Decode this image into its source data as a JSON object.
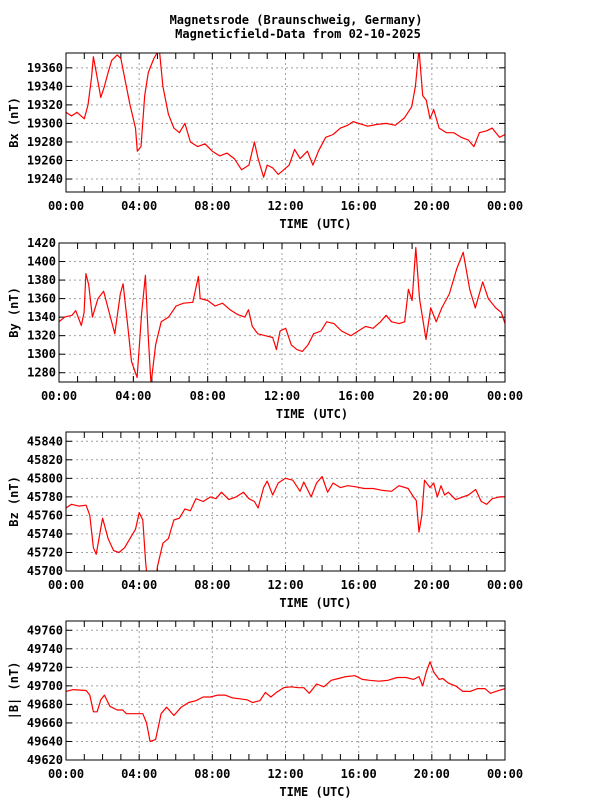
{
  "title_line1": "Magnetsrode (Braunschweig, Germany)",
  "title_line2": "Magneticfield-Data from 02-10-2025",
  "line_color": "#ff0000",
  "chart_data": [
    {
      "type": "line",
      "ylabel": "Bx (nT)",
      "xlabel": "TIME (UTC)",
      "xlim": [
        0,
        24
      ],
      "xticks": [
        "00:00",
        "04:00",
        "08:00",
        "12:00",
        "16:00",
        "20:00",
        "00:00"
      ],
      "ylim": [
        19226,
        19376
      ],
      "yticks": [
        19240,
        19260,
        19280,
        19300,
        19320,
        19340,
        19360
      ],
      "grid": true,
      "x": [
        0,
        0.3,
        0.6,
        1,
        1.2,
        1.4,
        1.5,
        1.7,
        1.9,
        2.1,
        2.3,
        2.5,
        2.8,
        3.0,
        3.2,
        3.5,
        3.8,
        3.9,
        4.1,
        4.3,
        4.5,
        4.8,
        5.1,
        5.3,
        5.6,
        5.9,
        6.2,
        6.5,
        6.8,
        7.2,
        7.6,
        8.0,
        8.4,
        8.8,
        9.2,
        9.6,
        10.0,
        10.3,
        10.5,
        10.8,
        11.0,
        11.3,
        11.6,
        11.9,
        12.2,
        12.5,
        12.8,
        13.2,
        13.5,
        13.8,
        14.2,
        14.6,
        15.0,
        15.4,
        15.7,
        16.0,
        16.5,
        17.0,
        17.5,
        18.0,
        18.5,
        18.9,
        19.1,
        19.3,
        19.5,
        19.7,
        19.9,
        20.1,
        20.4,
        20.8,
        21.2,
        21.6,
        22.0,
        22.3,
        22.6,
        23.0,
        23.3,
        23.7,
        24
      ],
      "y": [
        19312,
        19308,
        19312,
        19305,
        19320,
        19350,
        19372,
        19350,
        19328,
        19340,
        19355,
        19368,
        19374,
        19370,
        19350,
        19320,
        19295,
        19270,
        19275,
        19330,
        19355,
        19370,
        19380,
        19340,
        19310,
        19295,
        19290,
        19300,
        19280,
        19275,
        19278,
        19270,
        19265,
        19268,
        19262,
        19250,
        19255,
        19280,
        19262,
        19242,
        19255,
        19252,
        19245,
        19250,
        19255,
        19272,
        19262,
        19270,
        19255,
        19270,
        19285,
        19288,
        19295,
        19298,
        19302,
        19300,
        19297,
        19299,
        19300,
        19298,
        19306,
        19318,
        19340,
        19380,
        19330,
        19325,
        19305,
        19315,
        19295,
        19290,
        19290,
        19285,
        19282,
        19275,
        19290,
        19292,
        19295,
        19285,
        19288
      ]
    },
    {
      "type": "line",
      "ylabel": "By (nT)",
      "xlabel": "TIME (UTC)",
      "xlim": [
        0,
        24
      ],
      "xticks": [
        "00:00",
        "04:00",
        "08:00",
        "12:00",
        "16:00",
        "20:00",
        "00:00"
      ],
      "ylim": [
        1270,
        1420
      ],
      "yticks": [
        1280,
        1300,
        1320,
        1340,
        1360,
        1380,
        1400,
        1420
      ],
      "grid": true,
      "x": [
        0,
        0.3,
        0.7,
        0.9,
        1.2,
        1.35,
        1.45,
        1.6,
        1.8,
        2.1,
        2.4,
        2.7,
        3.0,
        3.3,
        3.45,
        3.7,
        3.9,
        4.2,
        4.45,
        4.65,
        4.8,
        4.95,
        5.2,
        5.5,
        5.9,
        6.3,
        6.7,
        7.2,
        7.5,
        7.6,
        8.0,
        8.4,
        8.8,
        9.2,
        9.6,
        10.0,
        10.2,
        10.4,
        10.7,
        11.1,
        11.5,
        11.7,
        11.9,
        12.2,
        12.5,
        12.8,
        13.1,
        13.4,
        13.7,
        14.1,
        14.4,
        14.8,
        15.2,
        15.7,
        16.1,
        16.5,
        16.9,
        17.3,
        17.6,
        17.9,
        18.3,
        18.6,
        18.8,
        19.0,
        19.2,
        19.4,
        19.75,
        20.0,
        20.3,
        20.6,
        21.0,
        21.4,
        21.75,
        22.1,
        22.4,
        22.8,
        23.1,
        23.5,
        23.8,
        24
      ],
      "y": [
        1335,
        1340,
        1342,
        1347,
        1331,
        1345,
        1387,
        1375,
        1340,
        1360,
        1368,
        1345,
        1322,
        1365,
        1376,
        1330,
        1292,
        1275,
        1345,
        1385,
        1320,
        1268,
        1310,
        1335,
        1340,
        1352,
        1355,
        1356,
        1384,
        1360,
        1358,
        1352,
        1355,
        1348,
        1343,
        1340,
        1348,
        1330,
        1322,
        1320,
        1318,
        1305,
        1325,
        1328,
        1310,
        1305,
        1303,
        1310,
        1322,
        1325,
        1335,
        1333,
        1325,
        1320,
        1325,
        1330,
        1328,
        1335,
        1342,
        1335,
        1333,
        1335,
        1370,
        1358,
        1415,
        1360,
        1316,
        1350,
        1335,
        1350,
        1365,
        1392,
        1410,
        1370,
        1350,
        1378,
        1360,
        1350,
        1345,
        1333
      ]
    },
    {
      "type": "line",
      "ylabel": "Bz (nT)",
      "xlabel": "TIME (UTC)",
      "xlim": [
        0,
        24
      ],
      "xticks": [
        "00:00",
        "04:00",
        "08:00",
        "12:00",
        "16:00",
        "20:00",
        "00:00"
      ],
      "ylim": [
        45700,
        45850
      ],
      "yticks": [
        45700,
        45720,
        45740,
        45760,
        45780,
        45800,
        45820,
        45840
      ],
      "grid": true,
      "x": [
        0,
        0.3,
        0.7,
        1.1,
        1.3,
        1.5,
        1.65,
        1.85,
        2.0,
        2.3,
        2.6,
        2.9,
        3.2,
        3.5,
        3.8,
        4.0,
        4.2,
        4.35,
        4.45,
        4.9,
        5.0,
        5.3,
        5.6,
        5.9,
        6.2,
        6.5,
        6.8,
        7.1,
        7.5,
        7.9,
        8.2,
        8.5,
        8.9,
        9.3,
        9.7,
        10.0,
        10.3,
        10.5,
        10.8,
        11.0,
        11.3,
        11.6,
        12.0,
        12.4,
        12.8,
        13.0,
        13.4,
        13.7,
        14.0,
        14.3,
        14.6,
        15.0,
        15.4,
        15.8,
        16.3,
        16.8,
        17.3,
        17.8,
        18.2,
        18.7,
        19.0,
        19.15,
        19.3,
        19.45,
        19.6,
        19.9,
        20.1,
        20.3,
        20.5,
        20.7,
        20.9,
        21.3,
        21.7,
        22.0,
        22.4,
        22.7,
        23.0,
        23.3,
        23.7,
        24
      ],
      "y": [
        45768,
        45772,
        45770,
        45771,
        45760,
        45725,
        45718,
        45740,
        45757,
        45735,
        45722,
        45720,
        45725,
        45735,
        45745,
        45763,
        45755,
        45710,
        45690,
        45690,
        45705,
        45730,
        45735,
        45755,
        45757,
        45767,
        45765,
        45778,
        45775,
        45780,
        45778,
        45785,
        45777,
        45780,
        45785,
        45778,
        45775,
        45768,
        45790,
        45797,
        45782,
        45795,
        45800,
        45798,
        45786,
        45796,
        45780,
        45795,
        45802,
        45785,
        45795,
        45790,
        45792,
        45791,
        45789,
        45789,
        45787,
        45786,
        45792,
        45789,
        45780,
        45776,
        45742,
        45760,
        45798,
        45790,
        45795,
        45780,
        45792,
        45782,
        45785,
        45777,
        45780,
        45782,
        45788,
        45775,
        45772,
        45778,
        45780,
        45780
      ]
    },
    {
      "type": "line",
      "ylabel": "|B| (nT)",
      "xlabel": "TIME (UTC)",
      "xlim": [
        0,
        24
      ],
      "xticks": [
        "00:00",
        "04:00",
        "08:00",
        "12:00",
        "16:00",
        "20:00",
        "00:00"
      ],
      "ylim": [
        49620,
        49770
      ],
      "yticks": [
        49620,
        49640,
        49660,
        49680,
        49700,
        49720,
        49740,
        49760
      ],
      "grid": true,
      "x": [
        0,
        0.4,
        1.1,
        1.3,
        1.5,
        1.7,
        1.9,
        2.1,
        2.4,
        2.8,
        3.1,
        3.3,
        3.8,
        4.2,
        4.4,
        4.6,
        4.9,
        5.2,
        5.5,
        5.9,
        6.3,
        6.7,
        7.1,
        7.5,
        7.9,
        8.3,
        8.7,
        9.1,
        9.5,
        9.9,
        10.2,
        10.6,
        10.9,
        11.2,
        11.5,
        11.9,
        12.3,
        12.7,
        13.0,
        13.3,
        13.7,
        14.1,
        14.5,
        14.9,
        15.3,
        15.8,
        16.2,
        16.6,
        17.1,
        17.6,
        18.1,
        18.6,
        19.0,
        19.3,
        19.5,
        19.7,
        19.9,
        20.1,
        20.4,
        20.6,
        20.9,
        21.3,
        21.7,
        22.1,
        22.5,
        22.9,
        23.2,
        23.5,
        24
      ],
      "y": [
        49694,
        49696,
        49695,
        49690,
        49672,
        49672,
        49685,
        49690,
        49678,
        49674,
        49674,
        49670,
        49670,
        49670,
        49660,
        49640,
        49642,
        49670,
        49677,
        49668,
        49677,
        49682,
        49684,
        49688,
        49688,
        49690,
        49690,
        49687,
        49686,
        49685,
        49682,
        49684,
        49693,
        49688,
        49693,
        49698,
        49699,
        49698,
        49698,
        49692,
        49702,
        49699,
        49706,
        49708,
        49710,
        49711,
        49707,
        49706,
        49705,
        49706,
        49709,
        49709,
        49707,
        49710,
        49700,
        49715,
        49726,
        49715,
        49707,
        49708,
        49703,
        49700,
        49694,
        49694,
        49697,
        49697,
        49692,
        49694,
        49697
      ]
    }
  ]
}
